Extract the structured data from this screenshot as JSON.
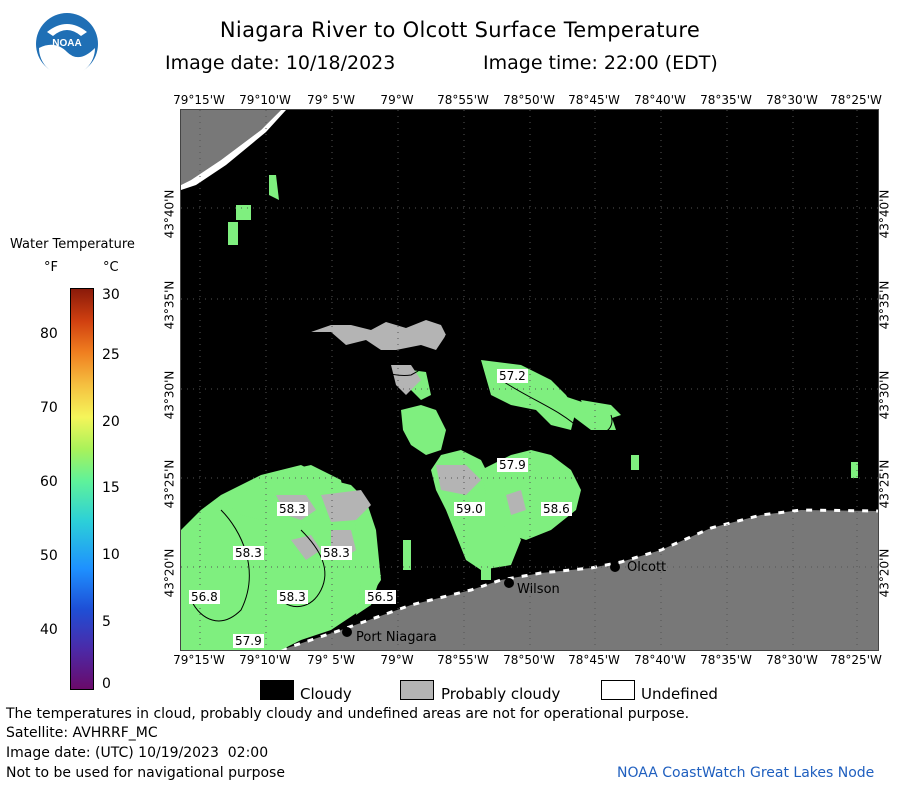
{
  "header": {
    "title": "Niagara River to Olcott Surface Temperature",
    "date_line": "Image date: 10/18/2023",
    "time_line": "Image time: 22:00 (EDT)"
  },
  "logo": {
    "text": "NOAA"
  },
  "longitudes": [
    "79°15'W",
    "79°10'W",
    "79° 5'W",
    "79°W",
    "78°55'W",
    "78°50'W",
    "78°45'W",
    "78°40'W",
    "78°35'W",
    "78°30'W",
    "78°25'W"
  ],
  "latitudes": [
    "43°40'N",
    "43°35'N",
    "43°30'N",
    "43°25'N",
    "43°20'N"
  ],
  "scale": {
    "title": "Water Temperature",
    "unit_f": "°F",
    "unit_c": "°C",
    "f_ticks": [
      "80",
      "70",
      "60",
      "50",
      "40"
    ],
    "c_ticks": [
      "30",
      "25",
      "20",
      "15",
      "10",
      "5",
      "0"
    ]
  },
  "temperature_labels": [
    "57.2",
    "57.9",
    "59.0",
    "58.6",
    "58.3",
    "58.3",
    "58.3",
    "56.8",
    "58.3",
    "56.5",
    "57.9"
  ],
  "towns": [
    "Olcott",
    "Wilson",
    "Port Niagara"
  ],
  "legend": {
    "cloudy": "Cloudy",
    "probably_cloudy": "Probably cloudy",
    "undefined": "Undefined",
    "colors": {
      "cloudy": "#000000",
      "probably_cloudy": "#b4b4b4",
      "undefined": "#ffffff",
      "land": "#787878",
      "water_green": "#7fef7f"
    }
  },
  "footer": {
    "note": "The temperatures in cloud, probably cloudy and undefined areas are not for operational purpose.",
    "satellite": "Satellite: AVHRRF_MC",
    "utc": "Image date: (UTC) 10/19/2023  02:00",
    "nav": "Not to be used for navigational purpose",
    "credit": "NOAA CoastWatch Great Lakes Node"
  }
}
